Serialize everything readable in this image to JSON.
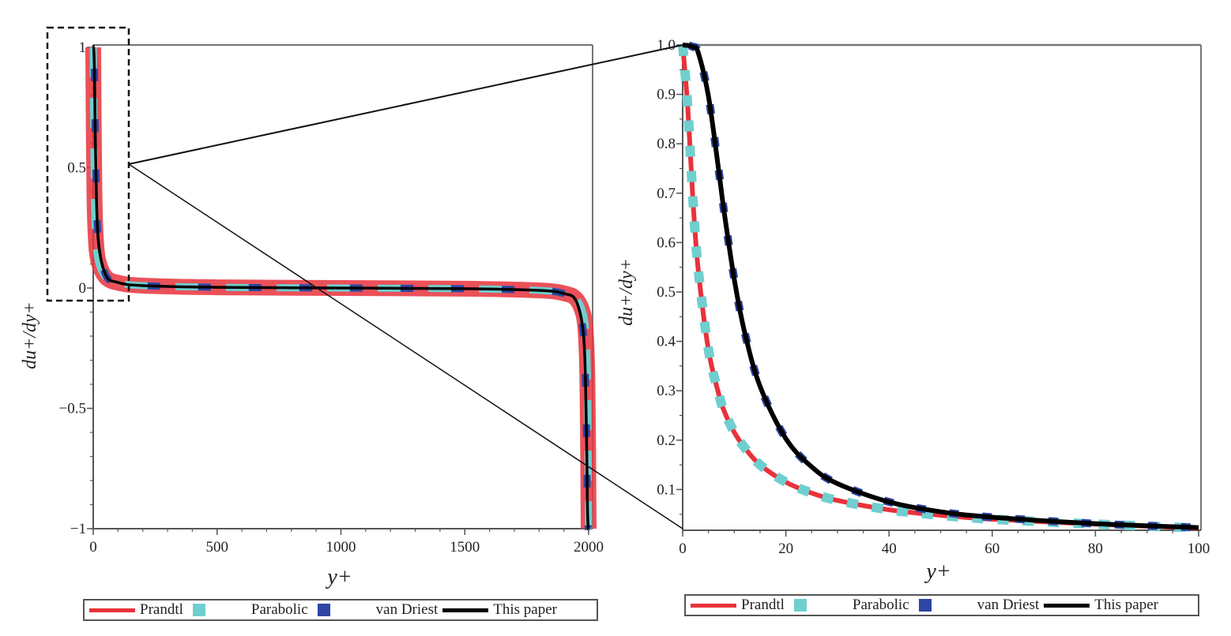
{
  "legend": [
    {
      "name": "Prandtl",
      "color": "#e8323c",
      "style": "solid-thick"
    },
    {
      "name": "Parabolic",
      "color": "#6fcfcf",
      "style": "dash"
    },
    {
      "name": "van Driest",
      "color": "#2e45a4",
      "style": "dash"
    },
    {
      "name": "This paper",
      "color": "#000000",
      "style": "solid"
    }
  ],
  "chart_data": [
    {
      "type": "line",
      "xlabel": "y+",
      "ylabel": "du+/dy+",
      "xlim": [
        0,
        2000
      ],
      "ylim": [
        -1,
        1
      ],
      "xticks": [
        "0",
        "500",
        "1000",
        "1500",
        "2000"
      ],
      "yticks": [
        "1",
        "0.5",
        "0",
        "−0.5",
        "−1"
      ],
      "xtick_values": [
        0,
        500,
        1000,
        1500,
        2000
      ],
      "ytick_values": [
        1,
        0.5,
        0,
        -0.5,
        -1
      ],
      "legend_position": "bottom",
      "grid": false,
      "x": [
        0,
        2,
        5,
        10,
        20,
        50,
        100,
        200,
        500,
        1000,
        1500,
        1800,
        1900,
        1950,
        1980,
        1990,
        1995,
        1998,
        2000
      ],
      "series": [
        {
          "name": "Prandtl",
          "values": [
            1,
            0.685,
            0.383,
            0.216,
            0.115,
            0.046,
            0.022,
            0.01,
            0.003,
            0,
            -0.003,
            -0.01,
            -0.022,
            -0.046,
            -0.115,
            -0.216,
            -0.383,
            -0.685,
            -1
          ]
        },
        {
          "name": "Parabolic",
          "values": [
            1,
            0.685,
            0.383,
            0.216,
            0.115,
            0.046,
            0.022,
            0.01,
            0.003,
            0,
            -0.003,
            -0.01,
            -0.022,
            -0.046,
            -0.115,
            -0.216,
            -0.383,
            -0.685,
            -1
          ]
        },
        {
          "name": "van Driest",
          "values": [
            1,
            0.996,
            0.896,
            0.526,
            0.203,
            0.055,
            0.023,
            0.01,
            0.003,
            0,
            -0.003,
            -0.01,
            -0.023,
            -0.055,
            -0.203,
            -0.526,
            -0.896,
            -0.996,
            -1
          ]
        },
        {
          "name": "This paper",
          "values": [
            1,
            0.996,
            0.896,
            0.526,
            0.203,
            0.055,
            0.023,
            0.01,
            0.003,
            0,
            -0.003,
            -0.01,
            -0.023,
            -0.055,
            -0.203,
            -0.526,
            -0.896,
            -0.996,
            -1
          ]
        }
      ]
    },
    {
      "type": "line",
      "xlabel": "y+",
      "ylabel": "du+/dy+",
      "xlim": [
        0,
        100
      ],
      "ylim": [
        0.015,
        1.0
      ],
      "xticks": [
        "0",
        "20",
        "40",
        "60",
        "80",
        "100"
      ],
      "yticks": [
        "1.0",
        "0.9",
        "0.8",
        "0.7",
        "0.6",
        "0.5",
        "0.4",
        "0.3",
        "0.2",
        "0.1"
      ],
      "xtick_values": [
        0,
        20,
        40,
        60,
        80,
        100
      ],
      "ytick_values": [
        1.0,
        0.9,
        0.8,
        0.7,
        0.6,
        0.5,
        0.4,
        0.3,
        0.2,
        0.1
      ],
      "legend_position": "bottom",
      "grid": false,
      "x": [
        0,
        1,
        2,
        3,
        5,
        7,
        8,
        10,
        12,
        15,
        20,
        25,
        30,
        40,
        50,
        60,
        80,
        100
      ],
      "series": [
        {
          "name": "Prandtl",
          "values": [
            1,
            0.872,
            0.685,
            0.547,
            0.383,
            0.293,
            0.26,
            0.216,
            0.185,
            0.15,
            0.115,
            0.093,
            0.078,
            0.059,
            0.048,
            0.04,
            0.03,
            0.022
          ]
        },
        {
          "name": "Parabolic",
          "values": [
            1,
            0.872,
            0.685,
            0.547,
            0.383,
            0.293,
            0.26,
            0.216,
            0.185,
            0.15,
            0.115,
            0.093,
            0.078,
            0.059,
            0.048,
            0.04,
            0.03,
            0.022
          ]
        },
        {
          "name": "van Driest",
          "values": [
            1,
            0.999,
            0.996,
            0.985,
            0.896,
            0.745,
            0.665,
            0.526,
            0.419,
            0.309,
            0.203,
            0.146,
            0.112,
            0.075,
            0.055,
            0.044,
            0.031,
            0.023
          ]
        },
        {
          "name": "This paper",
          "values": [
            1,
            0.999,
            0.996,
            0.985,
            0.896,
            0.745,
            0.665,
            0.526,
            0.419,
            0.309,
            0.203,
            0.146,
            0.112,
            0.075,
            0.055,
            0.044,
            0.031,
            0.023
          ]
        }
      ]
    }
  ]
}
